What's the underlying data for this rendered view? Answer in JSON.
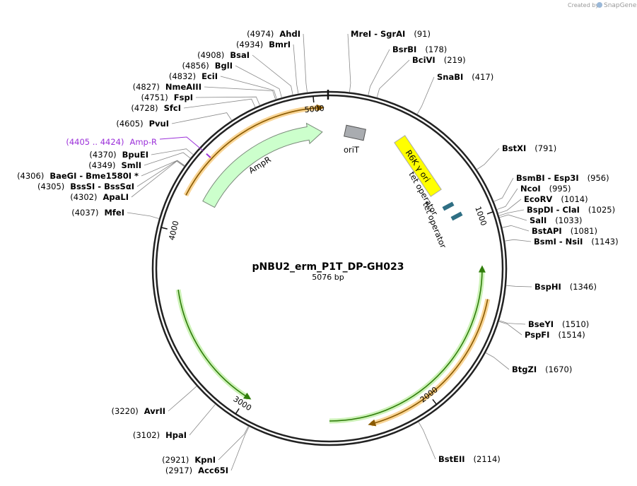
{
  "watermark": {
    "created_by": "Created by",
    "brand": "SnapGene"
  },
  "title": "pNBU2_erm_P1T_DP-GH023",
  "length": "5076 bp",
  "ticks": [
    "5000",
    "1000",
    "2000",
    "3000",
    "4000"
  ],
  "features": [
    {
      "label": "AmpR"
    },
    {
      "label": "oriT"
    },
    {
      "label": "R6K γ ori"
    },
    {
      "label": "tet operator"
    },
    {
      "label": "tet operator"
    }
  ],
  "primer": {
    "range": "(4405 .. 4424)",
    "label": "Amp-R"
  },
  "enzymes": [
    {
      "name": "AhdI",
      "position": "(4974)"
    },
    {
      "name": "BmrI",
      "position": "(4934)"
    },
    {
      "name": "BsaI",
      "position": "(4908)"
    },
    {
      "name": "BglI",
      "position": "(4856)"
    },
    {
      "name": "EciI",
      "position": "(4832)"
    },
    {
      "name": "NmeAIII",
      "position": "(4827)"
    },
    {
      "name": "FspI",
      "position": "(4751)"
    },
    {
      "name": "SfcI",
      "position": "(4728)"
    },
    {
      "name": "PvuI",
      "position": "(4605)"
    },
    {
      "name": "BpuEI",
      "position": "(4370)"
    },
    {
      "name": "SmlI",
      "position": "(4349)"
    },
    {
      "name": "BaeGI  -  Bme1580I *",
      "position": "(4306)"
    },
    {
      "name": "BssSI  -  BssSαI",
      "position": "(4305)"
    },
    {
      "name": "ApaLI",
      "position": "(4302)"
    },
    {
      "name": "MfeI",
      "position": "(4037)"
    },
    {
      "name": "AvrII",
      "position": "(3220)"
    },
    {
      "name": "HpaI",
      "position": "(3102)"
    },
    {
      "name": "KpnI",
      "position": "(2921)"
    },
    {
      "name": "Acc65I",
      "position": "(2917)"
    },
    {
      "name": "MreI  -  SgrAI",
      "position": "(91)"
    },
    {
      "name": "BsrBI",
      "position": "(178)"
    },
    {
      "name": "BciVI",
      "position": "(219)"
    },
    {
      "name": "SnaBI",
      "position": "(417)"
    },
    {
      "name": "BstXI",
      "position": "(791)"
    },
    {
      "name": "BsmBI  -  Esp3I",
      "position": "(956)"
    },
    {
      "name": "NcoI",
      "position": "(995)"
    },
    {
      "name": "EcoRV",
      "position": "(1014)"
    },
    {
      "name": "BspDI  -  ClaI",
      "position": "(1025)"
    },
    {
      "name": "SalI",
      "position": "(1033)"
    },
    {
      "name": "BstAPI",
      "position": "(1081)"
    },
    {
      "name": "BsmI  -  NsiI",
      "position": "(1143)"
    },
    {
      "name": "BspHI",
      "position": "(1346)"
    },
    {
      "name": "BseYI",
      "position": "(1510)"
    },
    {
      "name": "PspFI",
      "position": "(1514)"
    },
    {
      "name": "BtgZI",
      "position": "(1670)"
    },
    {
      "name": "BstEII",
      "position": "(2114)"
    }
  ]
}
